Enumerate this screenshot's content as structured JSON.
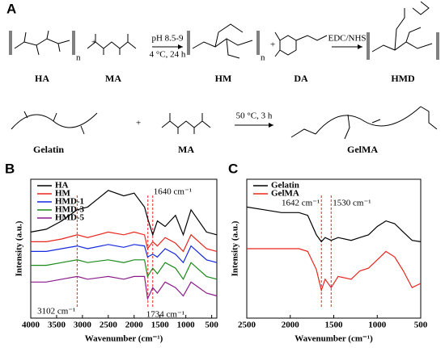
{
  "panel_a": {
    "label": "A",
    "row1": {
      "compounds": [
        "HA",
        "MA",
        "HM",
        "DA",
        "HMD"
      ],
      "condition_top": "pH 8.5-9",
      "condition_bottom": "4 °C, 24 h",
      "condition2": "EDC/NHS",
      "plus": "+",
      "subscript": "n"
    },
    "row2": {
      "compounds": [
        "Gelatin",
        "MA",
        "GelMA"
      ],
      "condition": "50 °C, 3 h",
      "plus": "+"
    }
  },
  "chart_data": [
    {
      "type": "line",
      "panel": "B",
      "xlabel": "Wavenumber (cm⁻¹)",
      "ylabel": "Intensity (a.u.)",
      "xlim": [
        4000,
        400
      ],
      "xticks": [
        4000,
        3500,
        3000,
        2500,
        2000,
        1500,
        1000,
        500
      ],
      "ylim": [
        0,
        100
      ],
      "legend": "upper left",
      "x": [
        4000,
        3700,
        3400,
        3100,
        2900,
        2500,
        2200,
        2000,
        1800,
        1740,
        1640,
        1550,
        1400,
        1200,
        1050,
        900,
        600,
        400
      ],
      "series": [
        {
          "name": "HA",
          "color": "#000000",
          "values": [
            62,
            64,
            70,
            78,
            80,
            92,
            88,
            90,
            80,
            72,
            60,
            70,
            66,
            74,
            60,
            78,
            62,
            60
          ]
        },
        {
          "name": "HM",
          "color": "#e8261e",
          "values": [
            55,
            55,
            57,
            60,
            58,
            62,
            60,
            62,
            60,
            50,
            55,
            52,
            58,
            54,
            48,
            60,
            50,
            48
          ]
        },
        {
          "name": "HMD-1",
          "color": "#1428e0",
          "values": [
            48,
            48,
            50,
            52,
            50,
            53,
            51,
            53,
            52,
            44,
            46,
            44,
            50,
            46,
            40,
            52,
            42,
            40
          ]
        },
        {
          "name": "HMD-3",
          "color": "#1a8a1a",
          "values": [
            38,
            38,
            40,
            42,
            40,
            42,
            40,
            42,
            42,
            30,
            36,
            32,
            40,
            36,
            28,
            40,
            30,
            28
          ]
        },
        {
          "name": "HMD-5",
          "color": "#8a1a8a",
          "values": [
            26,
            26,
            28,
            30,
            28,
            30,
            28,
            30,
            30,
            14,
            22,
            18,
            26,
            22,
            16,
            26,
            18,
            16
          ]
        }
      ],
      "annotations": [
        {
          "text": "1640 cm⁻¹",
          "x": 1640
        },
        {
          "text": "3102 cm⁻¹",
          "x": 3102
        },
        {
          "text": "1734 cm⁻¹",
          "x": 1734
        }
      ]
    },
    {
      "type": "line",
      "panel": "C",
      "xlabel": "Wavenumber (cm⁻¹)",
      "ylabel": "Intensity (a.u.)",
      "xlim": [
        2500,
        500
      ],
      "xticks": [
        2500,
        2000,
        1500,
        1000,
        500
      ],
      "ylim": [
        0,
        100
      ],
      "legend": "upper left",
      "x": [
        2500,
        2300,
        2100,
        1900,
        1800,
        1700,
        1642,
        1600,
        1530,
        1450,
        1300,
        1200,
        1100,
        1000,
        900,
        800,
        700,
        600,
        500
      ],
      "series": [
        {
          "name": "Gelatin",
          "color": "#000000",
          "values": [
            80,
            78,
            76,
            76,
            74,
            60,
            55,
            58,
            56,
            58,
            56,
            58,
            60,
            66,
            70,
            68,
            62,
            56,
            55
          ]
        },
        {
          "name": "GelMA",
          "color": "#e8261e",
          "values": [
            50,
            50,
            50,
            50,
            48,
            35,
            20,
            28,
            22,
            30,
            28,
            34,
            36,
            42,
            48,
            44,
            34,
            22,
            25
          ]
        }
      ],
      "annotations": [
        {
          "text": "1642 cm⁻¹",
          "x": 1642
        },
        {
          "text": "1530 cm⁻¹",
          "x": 1530
        }
      ]
    }
  ]
}
